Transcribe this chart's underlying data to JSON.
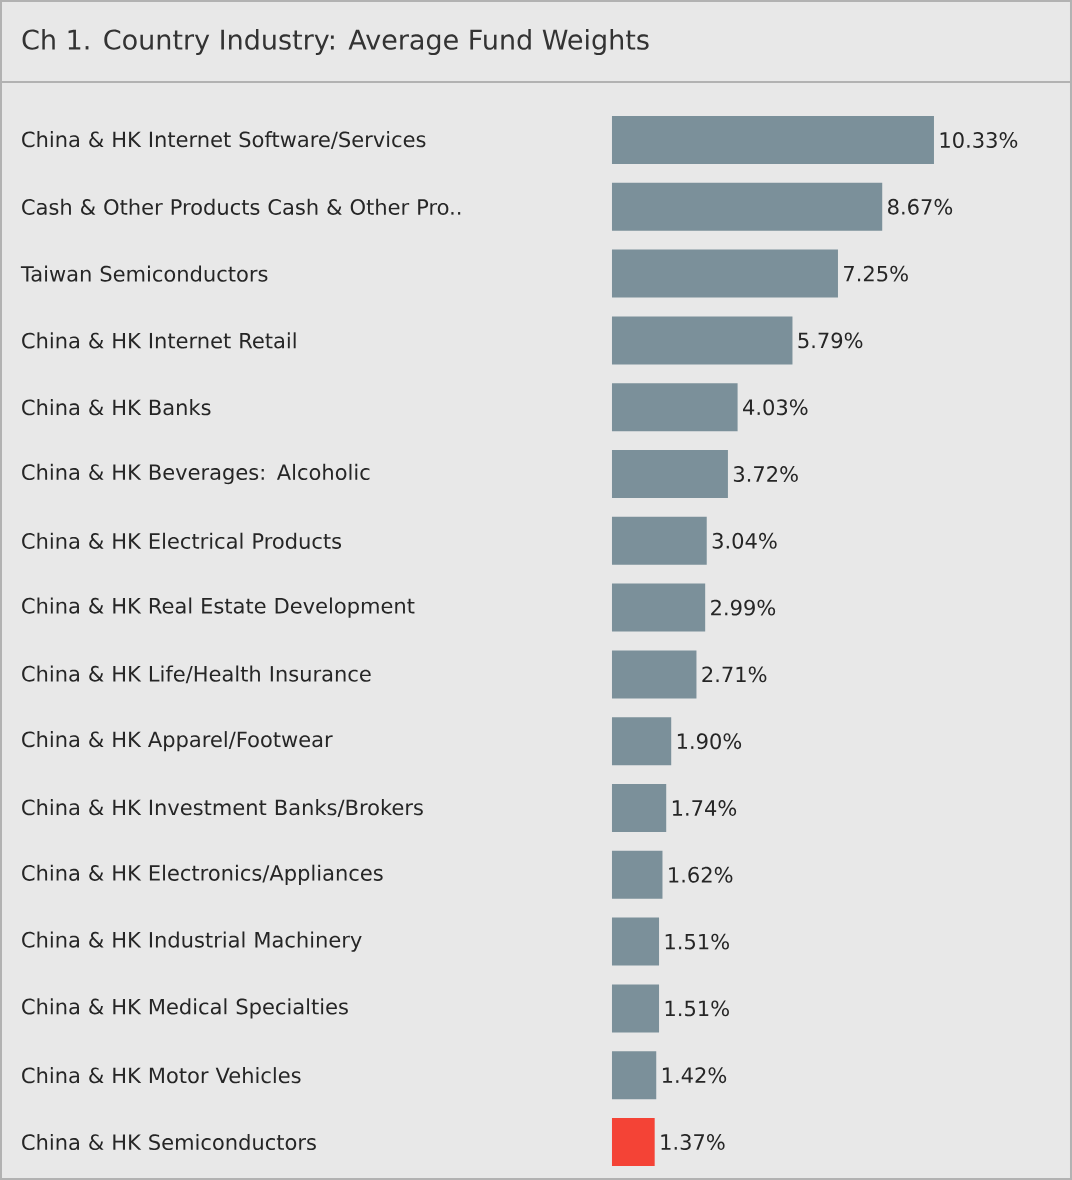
{
  "chart_data": {
    "type": "bar",
    "orientation": "horizontal",
    "title": "Ch 1.  Country Industry:  Average Fund Weights",
    "categories": [
      "China & HK Internet Software/Services",
      "Cash & Other Products Cash & Other Pro..",
      "Taiwan Semiconductors",
      "China & HK Internet Retail",
      "China & HK Banks",
      "China & HK Beverages: Alcoholic",
      "China & HK Electrical Products",
      "China & HK Real Estate Development",
      "China & HK Life/Health Insurance",
      "China & HK Apparel/Footwear",
      "China & HK Investment Banks/Brokers",
      "China & HK Electronics/Appliances",
      "China & HK Industrial Machinery",
      "China & HK Medical Specialties",
      "China & HK Motor Vehicles",
      "China & HK Semiconductors"
    ],
    "values": [
      10.33,
      8.67,
      7.25,
      5.79,
      4.03,
      3.72,
      3.04,
      2.99,
      2.71,
      1.9,
      1.74,
      1.62,
      1.51,
      1.51,
      1.42,
      1.37
    ],
    "value_labels": [
      "10.33%",
      "8.67%",
      "7.25%",
      "5.79%",
      "4.03%",
      "3.72%",
      "3.04%",
      "2.99%",
      "2.71%",
      "1.90%",
      "1.74%",
      "1.62%",
      "1.51%",
      "1.51%",
      "1.42%",
      "1.37%"
    ],
    "colors": [
      "#7b909a",
      "#7b909a",
      "#7b909a",
      "#7b909a",
      "#7b909a",
      "#7b909a",
      "#7b909a",
      "#7b909a",
      "#7b909a",
      "#7b909a",
      "#7b909a",
      "#7b909a",
      "#7b909a",
      "#7b909a",
      "#7b909a",
      "#f44336"
    ],
    "xlim": [
      0,
      10.33
    ],
    "tick_labels": "y"
  }
}
